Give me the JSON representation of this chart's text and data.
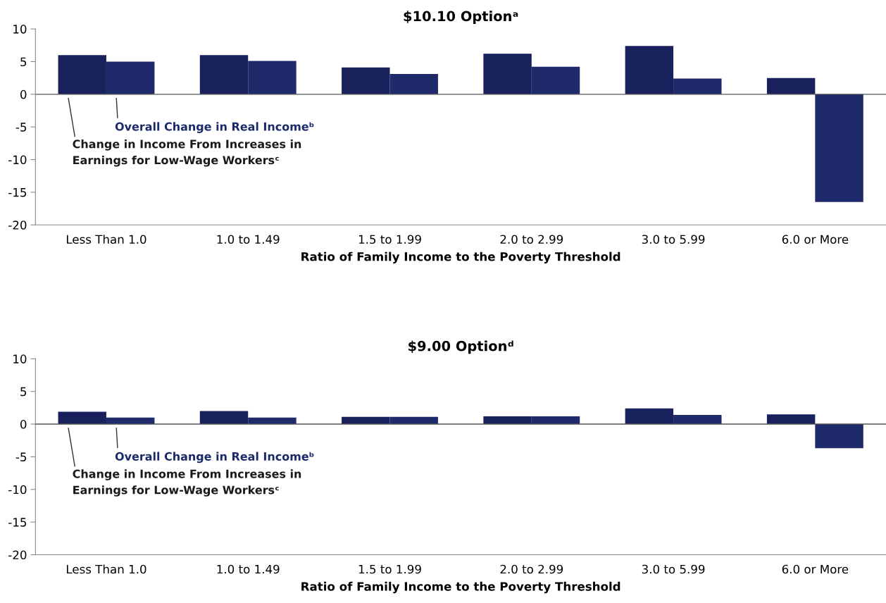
{
  "chart_data": [
    {
      "type": "bar",
      "title": "$10.10 Optionᵃ",
      "xlabel": "Ratio of Family Income to the Poverty Threshold",
      "categories": [
        "Less Than 1.0",
        "1.0 to 1.49",
        "1.5 to 1.99",
        "2.0 to 2.99",
        "3.0 to 5.99",
        "6.0 or More"
      ],
      "series": [
        {
          "name": "Change in Income From Increases in Earnings for Low-Wage Workersᶜ",
          "color": "#18215c",
          "values": [
            6.0,
            6.0,
            4.1,
            6.2,
            7.4,
            2.5
          ]
        },
        {
          "name": "Overall Change in Real Incomeᵇ",
          "color": "#1e2a6a",
          "values": [
            5.0,
            5.1,
            3.1,
            4.2,
            2.4,
            -16.5
          ]
        }
      ],
      "ylim": [
        -20,
        10
      ],
      "yticks": [
        -20,
        -15,
        -10,
        -5,
        0,
        5,
        10
      ],
      "ref_lines": [
        {
          "axis": "y",
          "value": 0,
          "color": "#555555"
        }
      ],
      "grid": false,
      "legend": false
    },
    {
      "type": "bar",
      "title": "$9.00 Optionᵈ",
      "xlabel": "Ratio of Family Income to the Poverty Threshold",
      "categories": [
        "Less Than 1.0",
        "1.0 to 1.49",
        "1.5 to 1.99",
        "2.0 to 2.99",
        "3.0 to 5.99",
        "6.0 or More"
      ],
      "series": [
        {
          "name": "Change in Income From Increases in Earnings for Low-Wage Workersᶜ",
          "color": "#18215c",
          "values": [
            1.9,
            2.0,
            1.1,
            1.2,
            2.4,
            1.5
          ]
        },
        {
          "name": "Overall Change in Real Incomeᵇ",
          "color": "#1e2a6a",
          "values": [
            1.0,
            1.0,
            1.1,
            1.2,
            1.4,
            -3.7
          ]
        }
      ],
      "ylim": [
        -20,
        10
      ],
      "yticks": [
        -20,
        -15,
        -10,
        -5,
        0,
        5,
        10
      ],
      "ref_lines": [
        {
          "axis": "y",
          "value": 0,
          "color": "#555555"
        }
      ],
      "grid": false,
      "legend": false
    }
  ]
}
